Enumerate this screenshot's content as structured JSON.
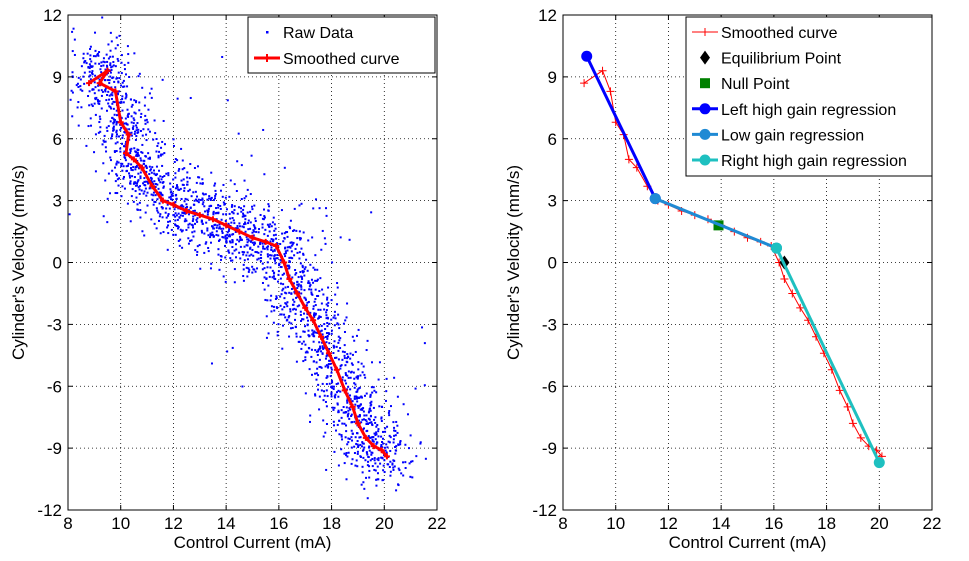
{
  "chart_data": [
    {
      "type": "scatter",
      "xlabel": "Control Current (mA)",
      "ylabel": "Cylinder's Velocity (mm/s)",
      "xlim": [
        8,
        22
      ],
      "ylim": [
        -12,
        12
      ],
      "xticks": [
        "8",
        "10",
        "12",
        "14",
        "16",
        "18",
        "20",
        "22"
      ],
      "yticks": [
        "-12",
        "-9",
        "-6",
        "-3",
        "0",
        "3",
        "6",
        "9",
        "12"
      ],
      "grid": true,
      "legend_position": "top-right",
      "series": [
        {
          "name": "Raw Data",
          "marker": "dot",
          "color": "#0000ff",
          "note_points": "dense cloud of several thousand points following the smoothed curve",
          "sample_count": 2200
        },
        {
          "name": "Smoothed curve",
          "marker": "+",
          "line": "solid",
          "color": "#ff0000",
          "x": [
            8.8,
            9.5,
            9.2,
            9.8,
            10.0,
            10.3,
            10.2,
            10.5,
            10.8,
            11.2,
            11.6,
            12.0,
            12.5,
            13.0,
            13.5,
            14.0,
            14.5,
            15.0,
            15.5,
            15.9,
            16.2,
            16.4,
            16.7,
            17.0,
            17.3,
            17.6,
            17.9,
            18.2,
            18.5,
            18.8,
            19.0,
            19.3,
            19.6,
            19.9,
            20.1
          ],
          "y": [
            8.7,
            9.3,
            8.7,
            8.3,
            6.8,
            6.2,
            5.3,
            5.0,
            4.6,
            3.7,
            3.0,
            2.8,
            2.5,
            2.3,
            2.1,
            1.8,
            1.5,
            1.2,
            1.0,
            0.8,
            0.0,
            -0.8,
            -1.5,
            -2.2,
            -2.8,
            -3.6,
            -4.4,
            -5.2,
            -6.2,
            -7.0,
            -7.8,
            -8.5,
            -8.9,
            -9.1,
            -9.4
          ]
        }
      ]
    },
    {
      "type": "line",
      "xlabel": "Control Current (mA)",
      "ylabel": "Cylinder's Velocity (mm/s)",
      "xlim": [
        8,
        22
      ],
      "ylim": [
        -12,
        12
      ],
      "xticks": [
        "8",
        "10",
        "12",
        "14",
        "16",
        "18",
        "20",
        "22"
      ],
      "yticks": [
        "-12",
        "-9",
        "-6",
        "-3",
        "0",
        "3",
        "6",
        "9",
        "12"
      ],
      "grid": true,
      "legend_position": "top-right",
      "series": [
        {
          "name": "Smoothed curve",
          "marker": "+",
          "line": "thin",
          "color": "#ff0000",
          "x": [
            8.8,
            9.5,
            9.8,
            10.0,
            10.3,
            10.5,
            10.8,
            11.2,
            11.6,
            12.0,
            12.5,
            13.0,
            13.5,
            14.0,
            14.5,
            15.0,
            15.5,
            15.9,
            16.2,
            16.4,
            16.7,
            17.0,
            17.3,
            17.6,
            17.9,
            18.2,
            18.5,
            18.8,
            19.0,
            19.3,
            19.6,
            19.9,
            20.1
          ],
          "y": [
            8.7,
            9.3,
            8.3,
            6.8,
            6.2,
            5.0,
            4.6,
            3.7,
            3.0,
            2.8,
            2.5,
            2.3,
            2.1,
            1.8,
            1.5,
            1.2,
            1.0,
            0.8,
            0.0,
            -0.8,
            -1.5,
            -2.2,
            -2.8,
            -3.6,
            -4.4,
            -5.2,
            -6.2,
            -7.0,
            -7.8,
            -8.5,
            -8.9,
            -9.1,
            -9.4
          ]
        },
        {
          "name": "Equilibrium Point",
          "marker": "diamond",
          "color": "#000000",
          "x": [
            16.4
          ],
          "y": [
            0.0
          ]
        },
        {
          "name": "Null Point",
          "marker": "square",
          "color": "#008000",
          "x": [
            13.9
          ],
          "y": [
            1.8
          ]
        },
        {
          "name": "Left high gain regression",
          "marker": "circle",
          "line": "solid",
          "color": "#0000ff",
          "x": [
            8.9,
            11.5
          ],
          "y": [
            10.0,
            3.1
          ]
        },
        {
          "name": "Low gain regression",
          "marker": "circle",
          "line": "solid",
          "color": "#1f8ad4",
          "x": [
            11.5,
            16.1
          ],
          "y": [
            3.1,
            0.7
          ]
        },
        {
          "name": "Right high gain regression",
          "marker": "circle",
          "line": "solid",
          "color": "#1ec0c0",
          "x": [
            16.1,
            20.0
          ],
          "y": [
            0.7,
            -9.7
          ]
        }
      ]
    }
  ]
}
